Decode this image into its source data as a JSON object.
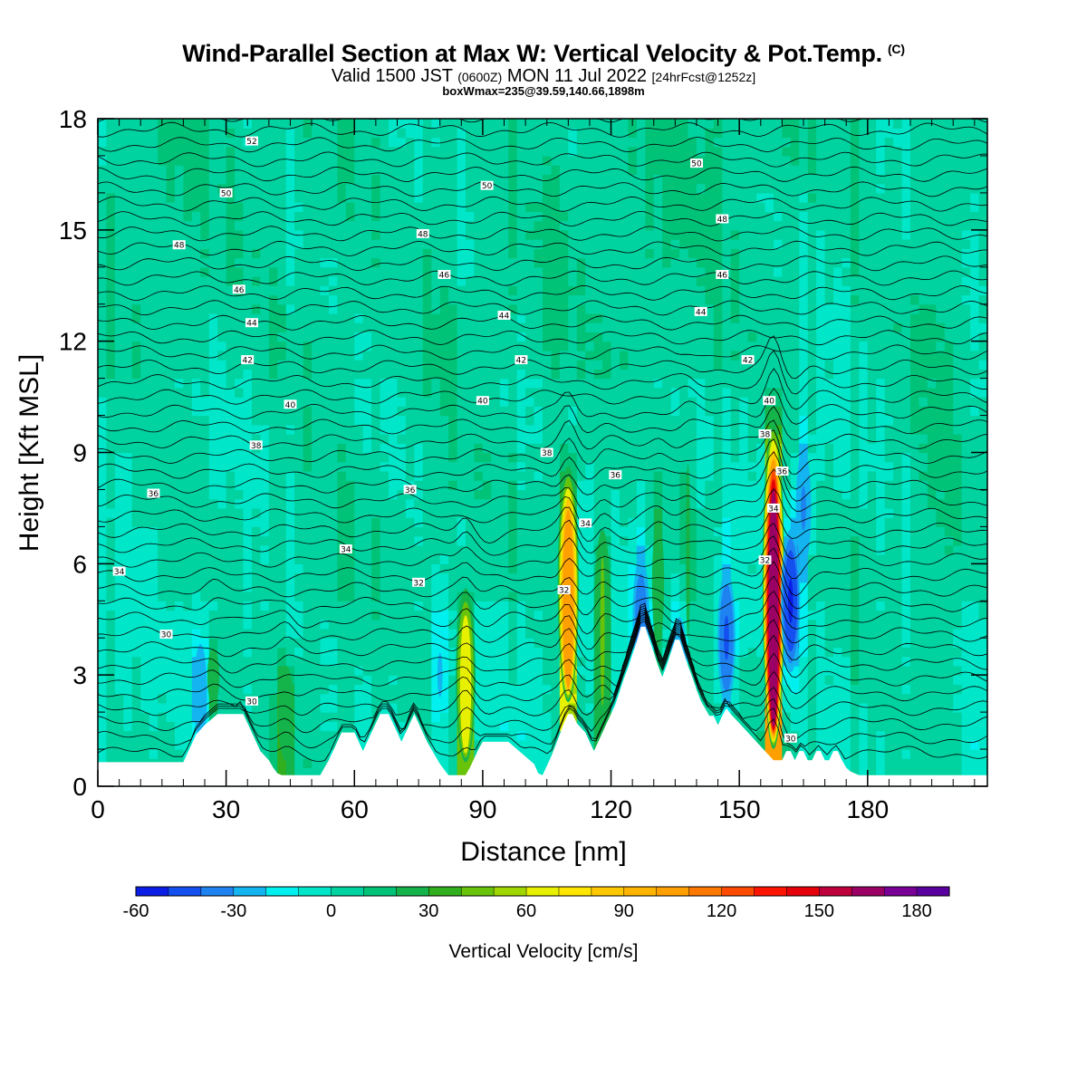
{
  "title": {
    "main": "Wind-Parallel Section at Max W: Vertical Velocity & Pot.Temp.",
    "copyright": "(C)",
    "valid_a": "Valid 1500 JST",
    "valid_z": "(0600Z)",
    "valid_b": "MON 11 Jul 2022",
    "fcst": "[24hrFcst@1252z]",
    "box": "boxWmax=235@39.59,140.66,1898m"
  },
  "chart_data": {
    "type": "heatmap",
    "xlabel": "Distance [nm]",
    "ylabel": "Height [Kft MSL]",
    "xlim": [
      0,
      208
    ],
    "ylim": [
      0,
      18
    ],
    "xticks": [
      0,
      30,
      60,
      90,
      120,
      150,
      180
    ],
    "yticks": [
      0,
      3,
      6,
      9,
      12,
      15,
      18
    ],
    "colorbar": {
      "label": "Vertical Velocity [cm/s]",
      "min": -60,
      "max": 190,
      "step": 10,
      "ticks": [
        -60,
        -30,
        0,
        30,
        60,
        90,
        120,
        150,
        180
      ],
      "colors": [
        "#0a1ee6",
        "#1450f0",
        "#1e82f0",
        "#14b4f0",
        "#00f0f0",
        "#00e6c8",
        "#00d2a0",
        "#00c378",
        "#14b44b",
        "#32af1e",
        "#69c30a",
        "#a0d700",
        "#e6f000",
        "#ffe600",
        "#ffc800",
        "#ffb400",
        "#ffa000",
        "#ff7800",
        "#ff4b00",
        "#ff1400",
        "#e6000a",
        "#be003c",
        "#9b0064",
        "#780096",
        "#5a00a0"
      ]
    },
    "updrafts": [
      {
        "x": 110,
        "peak_kft": 9.0,
        "max_w": 120
      },
      {
        "x": 158,
        "peak_kft": 10.2,
        "max_w": 180
      },
      {
        "x": 86,
        "peak_kft": 5.8,
        "max_w": 75
      },
      {
        "x": 118,
        "peak_kft": 7.8,
        "max_w": 45
      },
      {
        "x": 44,
        "peak_kft": 3.8,
        "max_w": 40
      },
      {
        "x": 27,
        "peak_kft": 4.2,
        "max_w": 30
      },
      {
        "x": 131,
        "peak_kft": 8.2,
        "max_w": 30
      },
      {
        "x": 138,
        "peak_kft": 10.5,
        "max_w": 25
      }
    ],
    "downdrafts": [
      {
        "x": 162,
        "peak_kft": 5.0,
        "min_w": -55
      },
      {
        "x": 147,
        "peak_kft": 4.0,
        "min_w": -45
      },
      {
        "x": 165,
        "peak_kft": 7.5,
        "min_w": -35
      },
      {
        "x": 127,
        "peak_kft": 4.5,
        "min_w": -40
      },
      {
        "x": 136,
        "peak_kft": 3.0,
        "min_w": -35
      },
      {
        "x": 80,
        "peak_kft": 3.0,
        "min_w": -25
      },
      {
        "x": 24,
        "peak_kft": 2.5,
        "min_w": -30
      }
    ],
    "terrain": {
      "x": [
        0,
        20,
        21,
        22,
        23,
        25,
        28,
        34,
        35,
        36,
        37,
        38,
        40,
        41,
        42,
        43,
        52,
        53,
        54,
        55,
        56,
        57,
        60,
        61,
        62,
        63,
        64,
        65,
        66,
        68,
        69,
        70,
        71,
        72,
        73,
        74,
        75,
        76,
        77,
        78,
        79,
        80,
        81,
        82,
        86,
        87,
        88,
        89,
        90,
        96,
        102,
        103,
        104,
        105,
        106,
        107,
        108,
        109,
        110,
        111,
        112,
        114,
        115,
        116,
        117,
        118,
        119,
        120,
        121,
        122,
        123,
        124,
        126,
        127,
        128,
        129,
        130,
        131,
        132,
        133,
        134,
        135,
        136,
        137,
        138,
        139,
        140,
        141,
        142,
        143,
        144,
        145,
        146,
        147,
        148,
        150,
        152,
        154,
        156,
        158,
        160,
        161,
        162,
        163,
        164,
        165,
        166,
        167,
        168,
        169,
        170,
        171,
        172,
        173,
        174,
        175,
        176,
        177,
        178,
        179,
        180,
        208
      ],
      "kft": [
        0.65,
        0.65,
        0.9,
        1.15,
        1.4,
        1.65,
        1.95,
        1.95,
        1.7,
        1.45,
        1.2,
        0.95,
        0.7,
        0.5,
        0.35,
        0.3,
        0.3,
        0.5,
        0.7,
        0.95,
        1.2,
        1.45,
        1.45,
        1.2,
        0.95,
        1.2,
        1.45,
        1.7,
        1.95,
        1.95,
        1.7,
        1.45,
        1.2,
        1.45,
        1.7,
        1.95,
        1.7,
        1.45,
        1.2,
        1.0,
        0.8,
        0.6,
        0.45,
        0.3,
        0.3,
        0.5,
        0.75,
        1.0,
        1.2,
        1.2,
        0.6,
        0.35,
        0.3,
        0.55,
        0.8,
        1.1,
        1.4,
        1.7,
        1.95,
        1.95,
        1.7,
        1.45,
        1.2,
        0.95,
        1.2,
        1.45,
        1.7,
        1.95,
        2.2,
        2.55,
        2.9,
        3.2,
        3.9,
        4.3,
        4.3,
        3.95,
        3.6,
        3.25,
        2.95,
        3.25,
        3.6,
        3.95,
        3.95,
        3.6,
        3.25,
        2.95,
        2.6,
        2.3,
        2.1,
        1.9,
        1.9,
        1.65,
        1.9,
        2.1,
        1.95,
        1.7,
        1.45,
        1.2,
        0.95,
        0.7,
        0.7,
        0.95,
        0.95,
        0.7,
        0.95,
        0.95,
        0.7,
        0.7,
        0.95,
        0.95,
        0.7,
        0.7,
        0.95,
        0.95,
        0.7,
        0.5,
        0.4,
        0.35,
        0.3,
        0.3,
        0.3,
        0.3
      ]
    },
    "theta_contour_labels": [
      {
        "text": "52",
        "x": 36,
        "kft": 17.4
      },
      {
        "text": "50",
        "x": 30,
        "kft": 16.0
      },
      {
        "text": "50",
        "x": 91,
        "kft": 16.2
      },
      {
        "text": "50",
        "x": 140,
        "kft": 16.8
      },
      {
        "text": "48",
        "x": 19,
        "kft": 14.6
      },
      {
        "text": "48",
        "x": 76,
        "kft": 14.9
      },
      {
        "text": "48",
        "x": 146,
        "kft": 15.3
      },
      {
        "text": "46",
        "x": 33,
        "kft": 13.4
      },
      {
        "text": "46",
        "x": 81,
        "kft": 13.8
      },
      {
        "text": "46",
        "x": 146,
        "kft": 13.8
      },
      {
        "text": "44",
        "x": 36,
        "kft": 12.5
      },
      {
        "text": "44",
        "x": 95,
        "kft": 12.7
      },
      {
        "text": "44",
        "x": 141,
        "kft": 12.8
      },
      {
        "text": "42",
        "x": 35,
        "kft": 11.5
      },
      {
        "text": "42",
        "x": 99,
        "kft": 11.5
      },
      {
        "text": "42",
        "x": 152,
        "kft": 11.5
      },
      {
        "text": "40",
        "x": 45,
        "kft": 10.3
      },
      {
        "text": "40",
        "x": 90,
        "kft": 10.4
      },
      {
        "text": "40",
        "x": 157,
        "kft": 10.4
      },
      {
        "text": "38",
        "x": 37,
        "kft": 9.2
      },
      {
        "text": "38",
        "x": 105,
        "kft": 9.0
      },
      {
        "text": "38",
        "x": 156,
        "kft": 9.5
      },
      {
        "text": "36",
        "x": 13,
        "kft": 7.9
      },
      {
        "text": "36",
        "x": 73,
        "kft": 8.0
      },
      {
        "text": "36",
        "x": 121,
        "kft": 8.4
      },
      {
        "text": "36",
        "x": 160,
        "kft": 8.5
      },
      {
        "text": "34",
        "x": 5,
        "kft": 5.8
      },
      {
        "text": "34",
        "x": 58,
        "kft": 6.4
      },
      {
        "text": "34",
        "x": 114,
        "kft": 7.1
      },
      {
        "text": "34",
        "x": 158,
        "kft": 7.5
      },
      {
        "text": "32",
        "x": 75,
        "kft": 5.5
      },
      {
        "text": "32",
        "x": 109,
        "kft": 5.3
      },
      {
        "text": "32",
        "x": 156,
        "kft": 6.1
      },
      {
        "text": "30",
        "x": 16,
        "kft": 4.1
      },
      {
        "text": "30",
        "x": 36,
        "kft": 2.3
      },
      {
        "text": "30",
        "x": 162,
        "kft": 1.3
      }
    ]
  }
}
